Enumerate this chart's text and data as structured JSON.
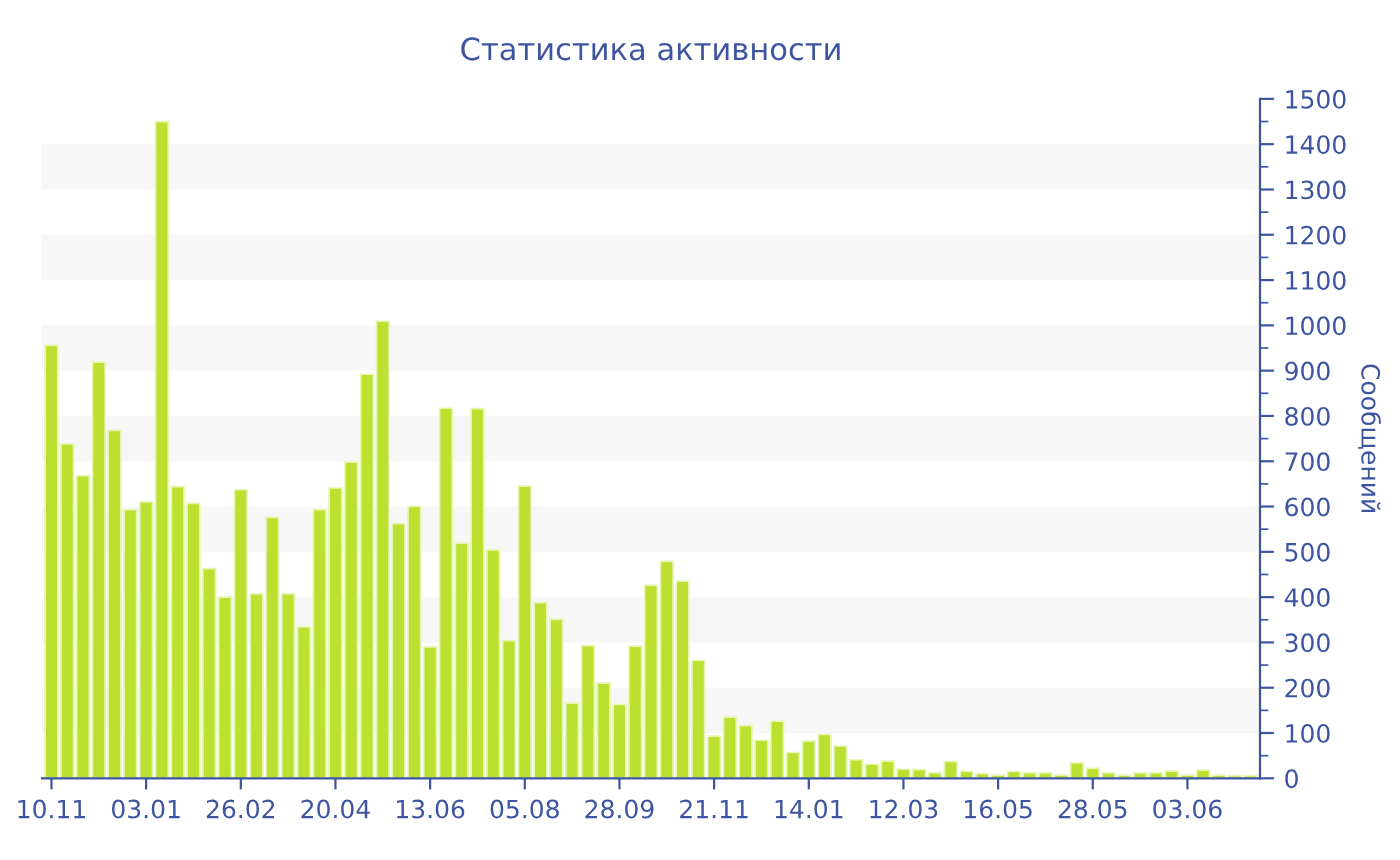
{
  "chart_data": {
    "type": "bar",
    "title": "Статистика активности",
    "ylabel": "Сообщений",
    "categories": [
      "10.11",
      null,
      null,
      null,
      null,
      null,
      "03.01",
      null,
      null,
      null,
      null,
      null,
      "26.02",
      null,
      null,
      null,
      null,
      null,
      "20.04",
      null,
      null,
      null,
      null,
      null,
      "13.06",
      null,
      null,
      null,
      null,
      null,
      "05.08",
      null,
      null,
      null,
      null,
      null,
      "28.09",
      null,
      null,
      null,
      null,
      null,
      "21.11",
      null,
      null,
      null,
      null,
      null,
      "14.01",
      null,
      null,
      null,
      null,
      null,
      "12.03",
      null,
      null,
      null,
      null,
      null,
      "16.05",
      null,
      null,
      null,
      null,
      null,
      "28.05",
      null,
      null,
      null,
      null,
      null,
      "03.06",
      null,
      null,
      null,
      null
    ],
    "values": [
      956,
      738,
      668,
      919,
      768,
      593,
      610,
      1450,
      644,
      607,
      463,
      400,
      637,
      407,
      576,
      407,
      334,
      593,
      641,
      698,
      892,
      1009,
      562,
      600,
      290,
      817,
      519,
      816,
      504,
      304,
      645,
      388,
      351,
      166,
      293,
      210,
      163,
      292,
      426,
      479,
      435,
      260,
      93,
      135,
      116,
      84,
      126,
      57,
      82,
      97,
      71,
      41,
      31,
      38,
      20,
      19,
      12,
      37,
      15,
      10,
      7,
      15,
      12,
      12,
      7,
      34,
      22,
      12,
      7,
      12,
      12,
      16,
      7,
      18,
      7,
      6,
      6
    ],
    "color": "#bbe02f",
    "ylim": [
      0,
      1500
    ],
    "yticks": [
      0,
      {
        "value": 50,
        "label": null
      },
      100,
      {
        "value": 150,
        "label": null
      },
      200,
      {
        "value": 250,
        "label": null
      },
      300,
      {
        "value": 350,
        "label": null
      },
      400,
      {
        "value": 450,
        "label": null
      },
      500,
      {
        "value": 550,
        "label": null
      },
      600,
      {
        "value": 650,
        "label": null
      },
      700,
      {
        "value": 750,
        "label": null
      },
      800,
      {
        "value": 850,
        "label": null
      },
      900,
      {
        "value": 950,
        "label": null
      },
      1000,
      {
        "value": 1050,
        "label": null
      },
      1100,
      {
        "value": 1150,
        "label": null
      },
      1200,
      {
        "value": 1250,
        "label": null
      },
      1300,
      {
        "value": 1350,
        "label": null
      },
      1400,
      {
        "value": 1450,
        "label": null
      },
      1500
    ],
    "bands": [
      {
        "axis": "y",
        "from": 100,
        "to": 200,
        "color": "#f7f7f7"
      },
      {
        "axis": "y",
        "from": 300,
        "to": 400,
        "color": "#f7f7f7"
      },
      {
        "axis": "y",
        "from": 500,
        "to": 600,
        "color": "#f7f7f7"
      },
      {
        "axis": "y",
        "from": 700,
        "to": 800,
        "color": "#f7f7f7"
      },
      {
        "axis": "y",
        "from": 900,
        "to": 1000,
        "color": "#f7f7f7"
      },
      {
        "axis": "y",
        "from": 1100,
        "to": 1200,
        "color": "#f7f7f7"
      },
      {
        "axis": "y",
        "from": 1300,
        "to": 1400,
        "color": "#f7f7f7"
      }
    ],
    "grid": false,
    "legend": false
  }
}
